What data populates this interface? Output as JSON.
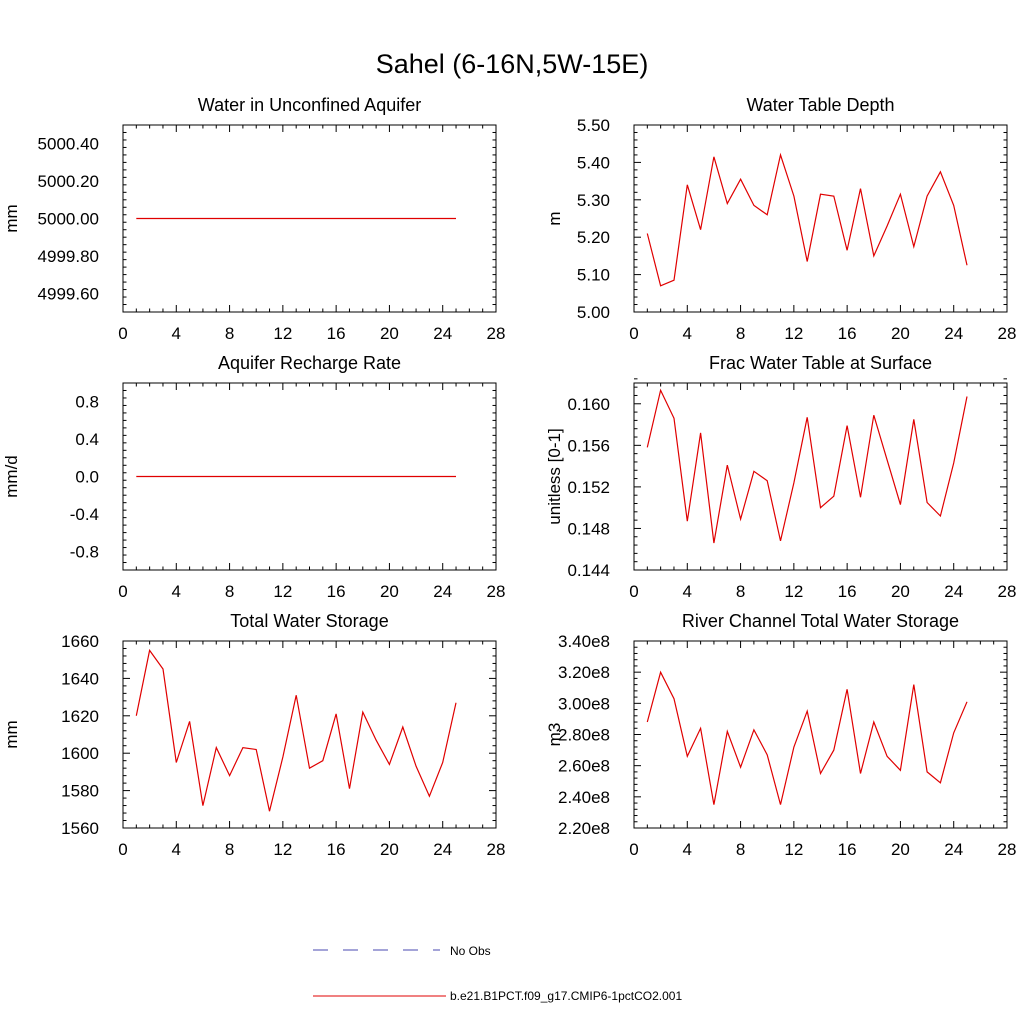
{
  "figure": {
    "title": "Sahel (6-16N,5W-15E)"
  },
  "legend": {
    "obs_label": "No Obs",
    "model_label": "b.e21.B1PCT.f09_g17.CMIP6-1pctCO2.001",
    "obs_color": "#4a4ab0",
    "model_color": "#e00000"
  },
  "chart_data": [
    {
      "type": "line",
      "title": "Water in Unconfined Aquifer",
      "ylabel": "mm",
      "xlim": [
        0,
        28
      ],
      "xticks": [
        0,
        4,
        8,
        12,
        16,
        20,
        24,
        28
      ],
      "ylim": [
        4999.5,
        5000.5
      ],
      "yticks": [
        4999.6,
        4999.8,
        5000.0,
        5000.2,
        5000.4
      ],
      "ytick_labels": [
        "4999.60",
        "4999.80",
        "5000.00",
        "5000.20",
        "5000.40"
      ],
      "x": [
        1,
        2,
        3,
        4,
        5,
        6,
        7,
        8,
        9,
        10,
        11,
        12,
        13,
        14,
        15,
        16,
        17,
        18,
        19,
        20,
        21,
        22,
        23,
        24,
        25
      ],
      "series": [
        {
          "values": [
            5000.0,
            5000.0,
            5000.0,
            5000.0,
            5000.0,
            5000.0,
            5000.0,
            5000.0,
            5000.0,
            5000.0,
            5000.0,
            5000.0,
            5000.0,
            5000.0,
            5000.0,
            5000.0,
            5000.0,
            5000.0,
            5000.0,
            5000.0,
            5000.0,
            5000.0,
            5000.0,
            5000.0,
            5000.0
          ]
        }
      ]
    },
    {
      "type": "line",
      "title": "Water Table Depth",
      "ylabel": "m",
      "xlim": [
        0,
        28
      ],
      "xticks": [
        0,
        4,
        8,
        12,
        16,
        20,
        24,
        28
      ],
      "ylim": [
        5.0,
        5.5
      ],
      "yticks": [
        5.0,
        5.1,
        5.2,
        5.3,
        5.4,
        5.5
      ],
      "ytick_labels": [
        "5.00",
        "5.10",
        "5.20",
        "5.30",
        "5.40",
        "5.50"
      ],
      "x": [
        1,
        2,
        3,
        4,
        5,
        6,
        7,
        8,
        9,
        10,
        11,
        12,
        13,
        14,
        15,
        16,
        17,
        18,
        19,
        20,
        21,
        22,
        23,
        24,
        25
      ],
      "series": [
        {
          "values": [
            5.21,
            5.07,
            5.085,
            5.34,
            5.22,
            5.415,
            5.29,
            5.355,
            5.285,
            5.26,
            5.42,
            5.31,
            5.135,
            5.315,
            5.31,
            5.165,
            5.33,
            5.15,
            5.23,
            5.315,
            5.175,
            5.31,
            5.375,
            5.285,
            5.125
          ]
        }
      ]
    },
    {
      "type": "line",
      "title": "Aquifer Recharge Rate",
      "ylabel": "mm/d",
      "xlim": [
        0,
        28
      ],
      "xticks": [
        0,
        4,
        8,
        12,
        16,
        20,
        24,
        28
      ],
      "ylim": [
        -1.0,
        1.0
      ],
      "yticks": [
        -0.8,
        -0.4,
        0.0,
        0.4,
        0.8
      ],
      "ytick_labels": [
        "-0.8",
        "-0.4",
        "0.0",
        "0.4",
        "0.8"
      ],
      "x": [
        1,
        2,
        3,
        4,
        5,
        6,
        7,
        8,
        9,
        10,
        11,
        12,
        13,
        14,
        15,
        16,
        17,
        18,
        19,
        20,
        21,
        22,
        23,
        24,
        25
      ],
      "series": [
        {
          "values": [
            0,
            0,
            0,
            0,
            0,
            0,
            0,
            0,
            0,
            0,
            0,
            0,
            0,
            0,
            0,
            0,
            0,
            0,
            0,
            0,
            0,
            0,
            0,
            0,
            0
          ]
        }
      ]
    },
    {
      "type": "line",
      "title": "Frac Water Table at Surface",
      "ylabel": "unitless [0-1]",
      "xlim": [
        0,
        28
      ],
      "xticks": [
        0,
        4,
        8,
        12,
        16,
        20,
        24,
        28
      ],
      "ylim": [
        0.144,
        0.162
      ],
      "yticks": [
        0.144,
        0.148,
        0.152,
        0.156,
        0.16
      ],
      "ytick_labels": [
        "0.144",
        "0.148",
        "0.152",
        "0.156",
        "0.160"
      ],
      "x": [
        1,
        2,
        3,
        4,
        5,
        6,
        7,
        8,
        9,
        10,
        11,
        12,
        13,
        14,
        15,
        16,
        17,
        18,
        19,
        20,
        21,
        22,
        23,
        24,
        25
      ],
      "series": [
        {
          "values": [
            0.1558,
            0.1613,
            0.1586,
            0.1487,
            0.1572,
            0.1466,
            0.1541,
            0.1489,
            0.1535,
            0.1526,
            0.1468,
            0.1524,
            0.1587,
            0.15,
            0.1511,
            0.1579,
            0.151,
            0.1589,
            0.1546,
            0.1503,
            0.1585,
            0.1505,
            0.1492,
            0.1543,
            0.1607
          ]
        }
      ]
    },
    {
      "type": "line",
      "title": "Total Water Storage",
      "ylabel": "mm",
      "xlim": [
        0,
        28
      ],
      "xticks": [
        0,
        4,
        8,
        12,
        16,
        20,
        24,
        28
      ],
      "ylim": [
        1560,
        1660
      ],
      "yticks": [
        1560,
        1580,
        1600,
        1620,
        1640,
        1660
      ],
      "ytick_labels": [
        "1560",
        "1580",
        "1600",
        "1620",
        "1640",
        "1660"
      ],
      "x": [
        1,
        2,
        3,
        4,
        5,
        6,
        7,
        8,
        9,
        10,
        11,
        12,
        13,
        14,
        15,
        16,
        17,
        18,
        19,
        20,
        21,
        22,
        23,
        24,
        25
      ],
      "series": [
        {
          "values": [
            1620,
            1655,
            1645,
            1595,
            1617,
            1572,
            1603,
            1588,
            1603,
            1602,
            1569,
            1598,
            1631,
            1592,
            1596,
            1621,
            1581,
            1622,
            1607,
            1594,
            1614,
            1593,
            1577,
            1595,
            1627
          ]
        }
      ]
    },
    {
      "type": "line",
      "title": "River Channel Total Water Storage",
      "ylabel": "m3",
      "xlim": [
        0,
        28
      ],
      "xticks": [
        0,
        4,
        8,
        12,
        16,
        20,
        24,
        28
      ],
      "ylim": [
        220000000,
        340000000
      ],
      "yticks": [
        220000000,
        240000000,
        260000000,
        280000000,
        300000000,
        320000000,
        340000000
      ],
      "ytick_labels": [
        "2.20e8",
        "2.40e8",
        "2.60e8",
        "2.80e8",
        "3.00e8",
        "3.20e8",
        "3.40e8"
      ],
      "x": [
        1,
        2,
        3,
        4,
        5,
        6,
        7,
        8,
        9,
        10,
        11,
        12,
        13,
        14,
        15,
        16,
        17,
        18,
        19,
        20,
        21,
        22,
        23,
        24,
        25
      ],
      "series": [
        {
          "values": [
            288000000,
            320000000,
            303000000,
            266000000,
            284000000,
            235000000,
            282000000,
            259000000,
            283000000,
            267000000,
            235000000,
            272000000,
            295000000,
            255000000,
            270000000,
            309000000,
            255000000,
            288000000,
            266000000,
            257000000,
            312000000,
            256000000,
            249000000,
            281000000,
            301000000
          ]
        }
      ]
    }
  ]
}
